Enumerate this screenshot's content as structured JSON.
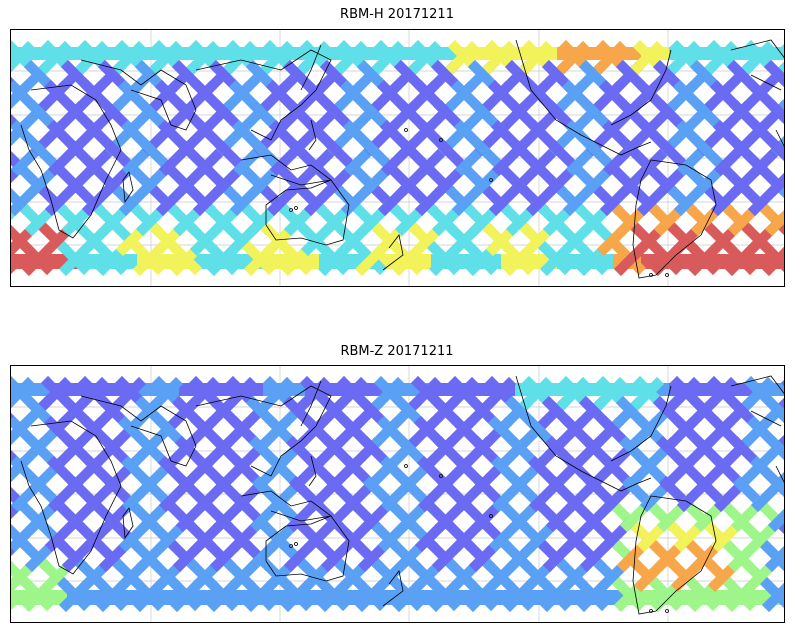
{
  "panels": [
    {
      "title": "RBM-H 20171211",
      "variant": "H"
    },
    {
      "title": "RBM-Z 20171211",
      "variant": "Z"
    }
  ],
  "colors": {
    "track_blue": "#6a6af2",
    "track_lightblue": "#5aa0f5",
    "cyan": "#5fe0e8",
    "green": "#9ef58a",
    "yellow": "#f2f25a",
    "orange": "#f7a64a",
    "red": "#d95a5a",
    "coastline": "#000000",
    "gridline": "#c8c8c8"
  },
  "colormap": "jet"
}
